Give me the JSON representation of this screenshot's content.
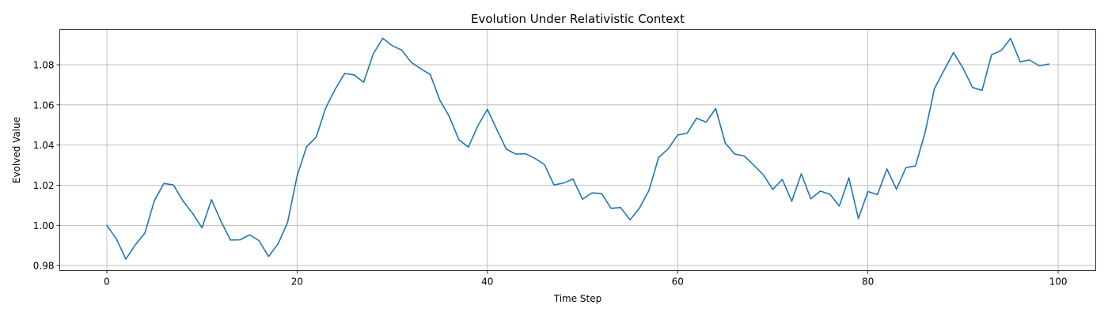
{
  "chart_data": {
    "type": "line",
    "title": "Evolution Under Relativistic Context",
    "xlabel": "Time Step",
    "ylabel": "Evolved Value",
    "xlim": [
      -4.95,
      103.95
    ],
    "ylim": [
      0.9775,
      1.0975
    ],
    "xticks": [
      0,
      20,
      40,
      60,
      80,
      100
    ],
    "yticks": [
      0.98,
      1.0,
      1.02,
      1.04,
      1.06,
      1.08
    ],
    "ytick_labels": [
      "0.98",
      "1.00",
      "1.02",
      "1.04",
      "1.06",
      "1.08"
    ],
    "grid": true,
    "color": "#1f77b4",
    "series": [
      {
        "x": [
          0,
          1,
          2,
          3,
          4,
          5,
          6,
          7,
          8,
          9,
          10,
          11,
          12,
          13,
          14,
          15,
          16,
          17,
          18,
          19,
          20,
          21,
          22,
          23,
          24,
          25,
          26,
          27,
          28,
          29,
          30,
          31,
          32,
          33,
          34,
          35,
          36,
          37,
          38,
          39,
          40,
          41,
          42,
          43,
          44,
          45,
          46,
          47,
          48,
          49,
          50,
          51,
          52,
          53,
          54,
          55,
          56,
          57,
          58,
          59,
          60,
          61,
          62,
          63,
          64,
          65,
          66,
          67,
          68,
          69,
          70,
          71,
          72,
          73,
          74,
          75,
          76,
          77,
          78,
          79,
          80,
          81,
          82,
          83,
          84,
          85,
          86,
          87,
          88,
          89,
          90,
          91,
          92,
          93,
          94,
          95,
          96,
          97,
          98,
          99
        ],
        "values": [
          1.0,
          0.9933,
          0.9832,
          0.9904,
          0.9962,
          1.0124,
          1.0209,
          1.0201,
          1.0122,
          1.0061,
          0.9988,
          1.0128,
          1.002,
          0.9927,
          0.9928,
          0.9953,
          0.9924,
          0.9845,
          0.9908,
          1.0015,
          1.0247,
          1.0392,
          1.0439,
          1.0584,
          1.0678,
          1.0757,
          1.0749,
          1.0713,
          1.0854,
          1.0932,
          1.0895,
          1.0873,
          1.0812,
          1.078,
          1.0751,
          1.0624,
          1.0542,
          1.0427,
          1.039,
          1.0496,
          1.0578,
          1.0477,
          1.0379,
          1.0355,
          1.0357,
          1.0334,
          1.0303,
          1.0201,
          1.0211,
          1.0231,
          1.013,
          1.0162,
          1.0159,
          1.0085,
          1.0089,
          1.0028,
          1.0087,
          1.0176,
          1.0338,
          1.0381,
          1.045,
          1.0459,
          1.0534,
          1.0514,
          1.0582,
          1.0411,
          1.0355,
          1.0346,
          1.03,
          1.0253,
          1.0179,
          1.0229,
          1.012,
          1.0257,
          1.0132,
          1.0171,
          1.0155,
          1.0096,
          1.0237,
          1.0034,
          1.0169,
          1.0153,
          1.0281,
          1.018,
          1.0288,
          1.0296,
          1.046,
          1.0682,
          1.0772,
          1.0861,
          1.0783,
          1.0687,
          1.0672,
          1.085,
          1.087,
          1.0931,
          1.0815,
          1.0824,
          1.0795,
          1.0803
        ]
      }
    ]
  }
}
